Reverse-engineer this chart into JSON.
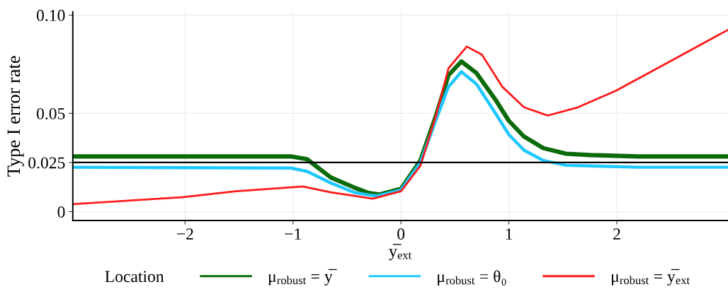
{
  "chart_data": {
    "type": "line",
    "xlabel": "y̅$_{ext}$",
    "ylabel": "Type I error rate",
    "legend_title": "Location",
    "xlim": [
      -3.04,
      3.03
    ],
    "ylim": [
      -0.0045,
      0.1017
    ],
    "xticks": [
      {
        "value": -2,
        "label": "−2"
      },
      {
        "value": -1,
        "label": "−1"
      },
      0,
      1,
      2
    ],
    "yticks": [
      0,
      0.025,
      0.05,
      {
        "value": 0.1,
        "label": "0.10"
      }
    ],
    "grid": true,
    "legend": "bottom",
    "line_style": "solid",
    "marker": "none",
    "ref_lines": [
      {
        "axis": "y",
        "value": 0.025,
        "color": "#000000"
      }
    ],
    "series": [
      {
        "name": "μ$_{robust}$ = y̅",
        "color": "#0b6b0b",
        "x": [
          -3.04,
          -1.02,
          -0.87,
          -0.65,
          -0.43,
          -0.3,
          -0.2,
          0,
          0.18,
          0.33,
          0.44,
          0.56,
          0.7,
          0.88,
          1.0,
          1.14,
          1.32,
          1.53,
          1.75,
          2.2,
          3.03
        ],
        "values": [
          0.0281,
          0.0281,
          0.0267,
          0.0174,
          0.0122,
          0.0095,
          0.0087,
          0.0116,
          0.026,
          0.0497,
          0.0694,
          0.0764,
          0.0705,
          0.0566,
          0.0462,
          0.0382,
          0.0323,
          0.0295,
          0.0288,
          0.0281,
          0.0281
        ]
      },
      {
        "name": "μ$_{robust}$ = θ₀",
        "color": "#1ec8ff",
        "x": [
          -3.04,
          -1.02,
          -0.87,
          -0.65,
          -0.43,
          -0.3,
          -0.22,
          0,
          0.18,
          0.33,
          0.44,
          0.56,
          0.7,
          0.88,
          1.0,
          1.14,
          1.32,
          1.53,
          1.75,
          2.2,
          3.03
        ],
        "values": [
          0.0226,
          0.0222,
          0.0205,
          0.0146,
          0.0097,
          0.0085,
          0.008,
          0.011,
          0.025,
          0.0475,
          0.0635,
          0.0712,
          0.0649,
          0.0497,
          0.0392,
          0.0313,
          0.026,
          0.0236,
          0.0233,
          0.0226,
          0.0226
        ]
      },
      {
        "name": "μ$_{robust}$ = y̅$_{ext}$",
        "color": "#ff1a1a",
        "x": [
          -3.04,
          -2.03,
          -1.53,
          -0.91,
          -0.65,
          -0.43,
          -0.26,
          0,
          0.18,
          0.33,
          0.44,
          0.61,
          0.75,
          0.94,
          1.14,
          1.36,
          1.64,
          1.99,
          2.41,
          3.03
        ],
        "values": [
          0.0038,
          0.0073,
          0.0104,
          0.0128,
          0.0098,
          0.008,
          0.0066,
          0.0104,
          0.0233,
          0.0497,
          0.0729,
          0.084,
          0.0799,
          0.0635,
          0.0531,
          0.0489,
          0.0531,
          0.0615,
          0.074,
          0.0925
        ]
      }
    ]
  }
}
